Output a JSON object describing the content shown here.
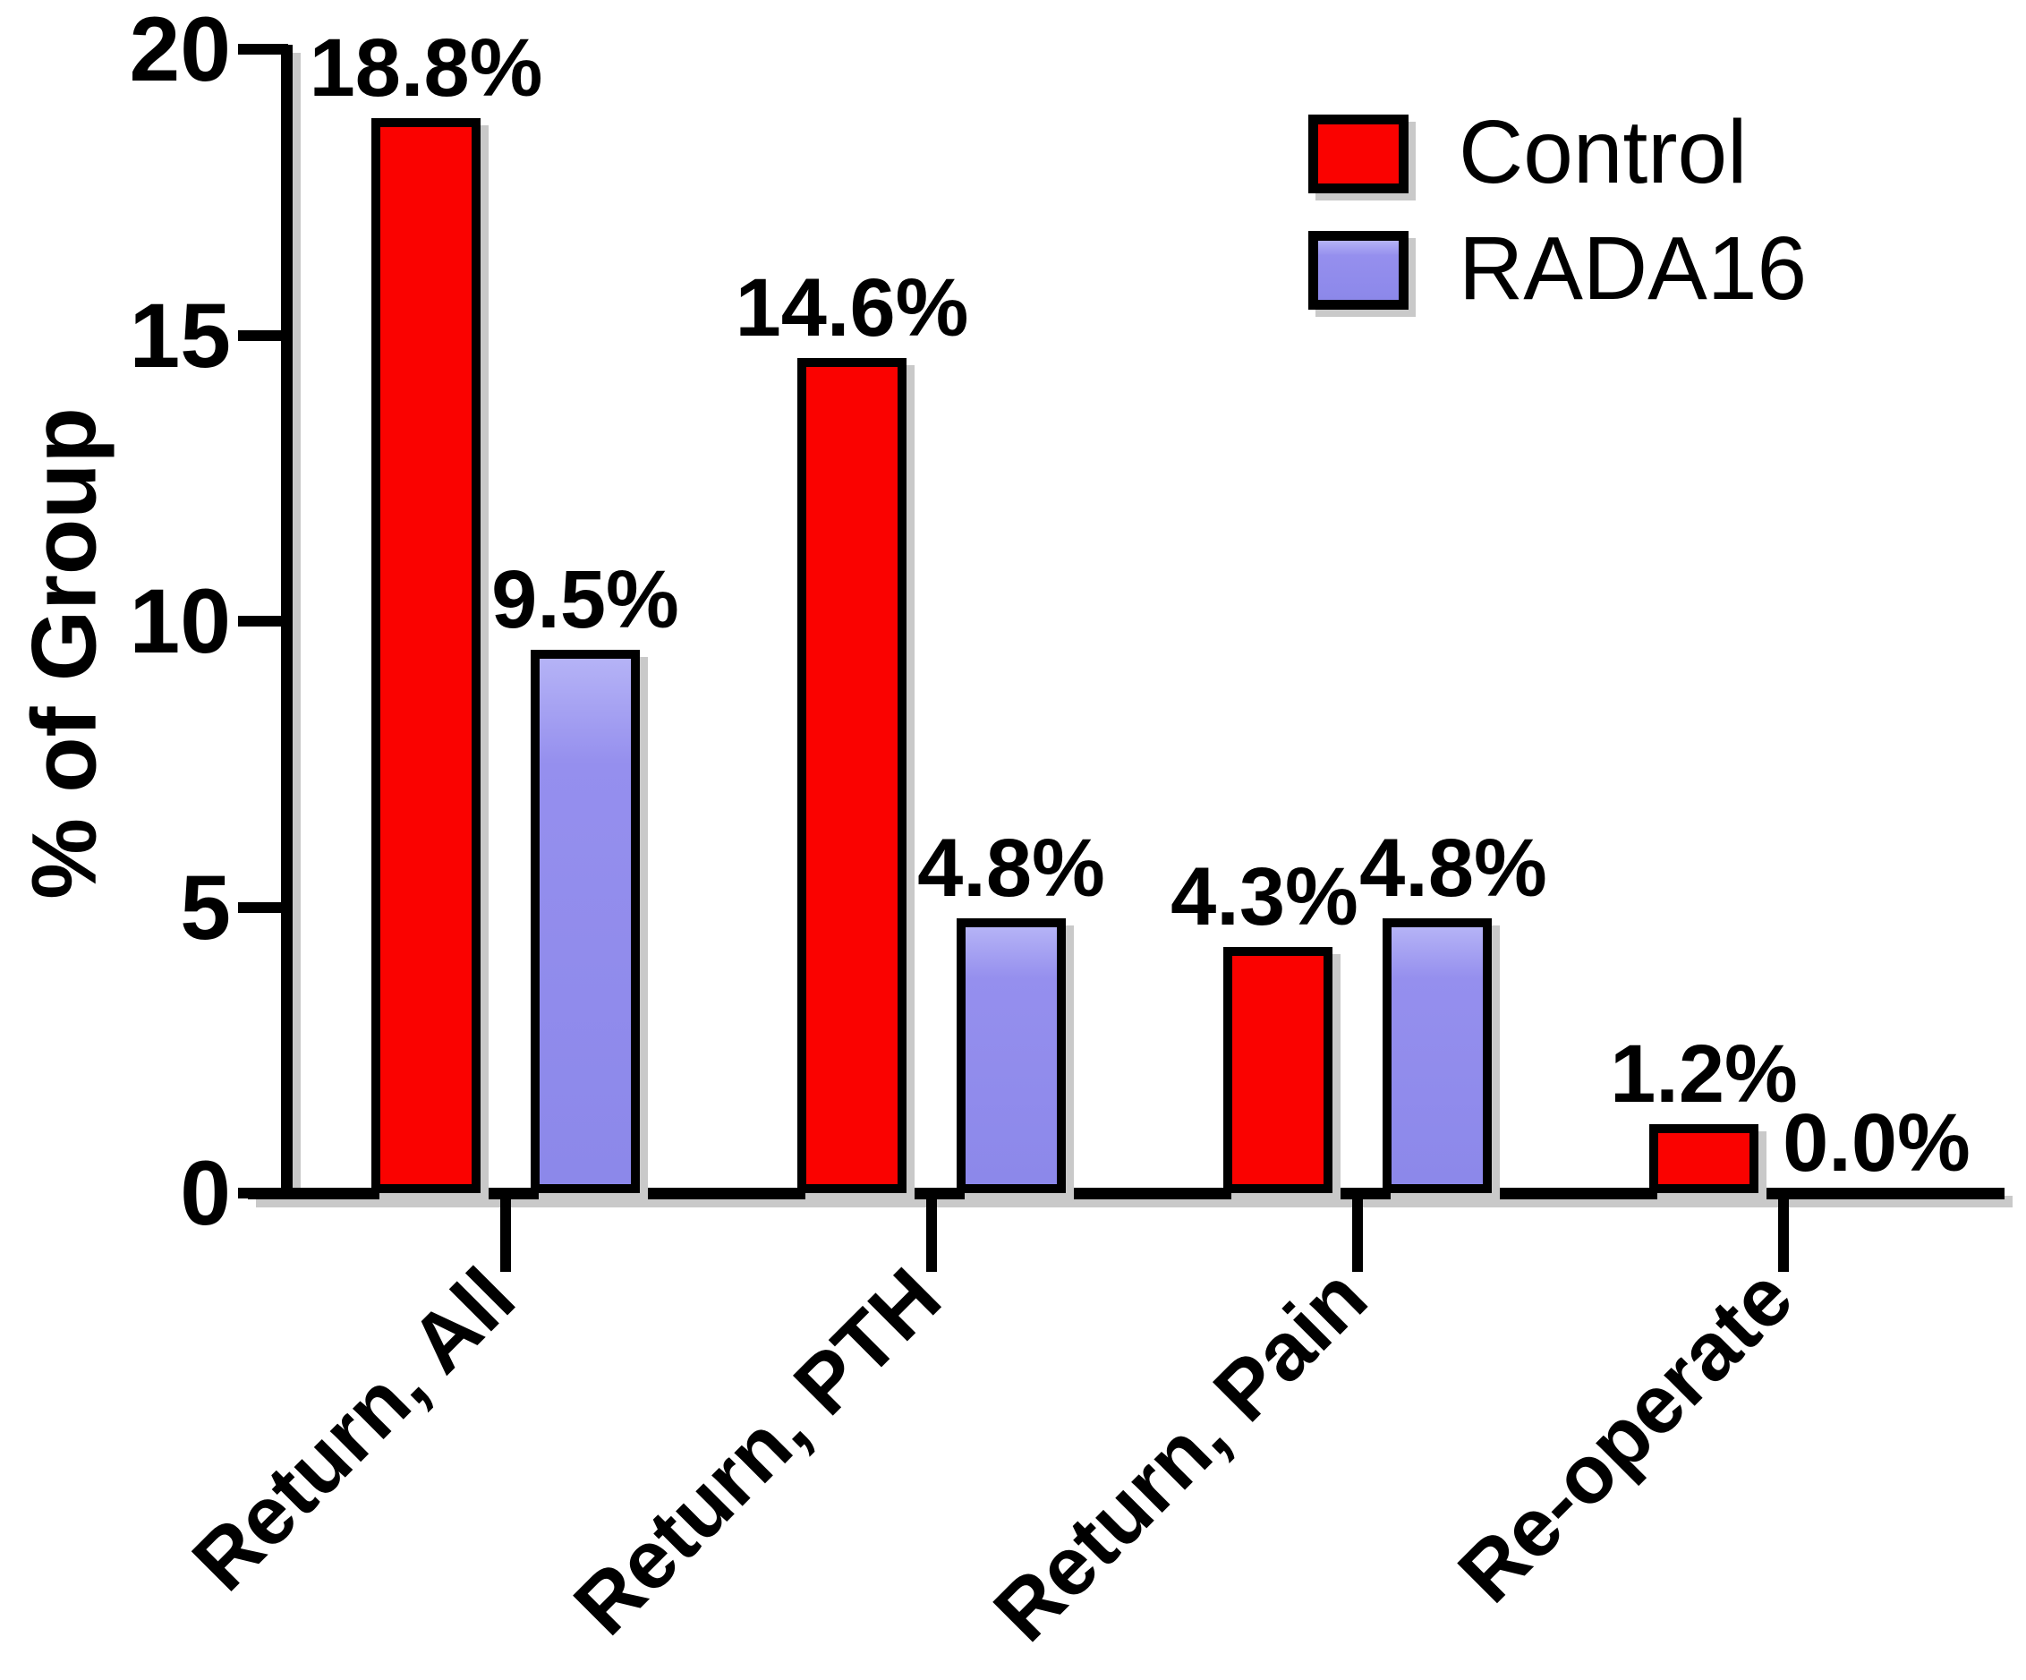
{
  "chart_data": {
    "type": "bar",
    "title": "",
    "ylabel": "% of Group",
    "xlabel": "",
    "ylim": [
      0,
      20
    ],
    "yticks": [
      "0",
      "5",
      "10",
      "15",
      "20"
    ],
    "ytick_values": [
      0,
      5,
      10,
      15,
      20
    ],
    "grid": false,
    "legend_position": "upper right",
    "categories": [
      "Return, All",
      "Return, PTH",
      "Return, Pain",
      "Re-operate"
    ],
    "series": [
      {
        "name": "Control",
        "color": "#fa0200",
        "values": [
          18.8,
          14.6,
          4.3,
          1.2
        ],
        "value_labels": [
          "18.8%",
          "14.6%",
          "4.3%",
          "1.2%"
        ]
      },
      {
        "name": "RADA16",
        "color": "#958fee",
        "values": [
          9.5,
          4.8,
          4.8,
          0.0
        ],
        "value_labels": [
          "9.5%",
          "4.8%",
          "4.8%",
          "0.0%"
        ]
      }
    ]
  }
}
